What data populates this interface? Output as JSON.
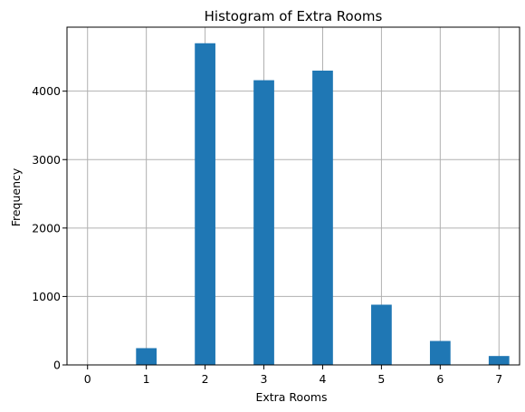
{
  "chart_data": {
    "type": "bar",
    "title": "Histogram of Extra Rooms",
    "xlabel": "Extra Rooms",
    "ylabel": "Frequency",
    "categories": [
      0,
      1,
      2,
      3,
      4,
      5,
      6,
      7
    ],
    "values": [
      0,
      245,
      4700,
      4160,
      4300,
      880,
      350,
      130
    ],
    "xlim": [
      -0.35,
      7.35
    ],
    "ylim": [
      0,
      4935
    ],
    "xticks": [
      "0",
      "1",
      "2",
      "3",
      "4",
      "5",
      "6",
      "7"
    ],
    "yticks": [
      "0",
      "1000",
      "2000",
      "3000",
      "4000"
    ],
    "grid": true,
    "bar_color": "#1f77b4"
  }
}
